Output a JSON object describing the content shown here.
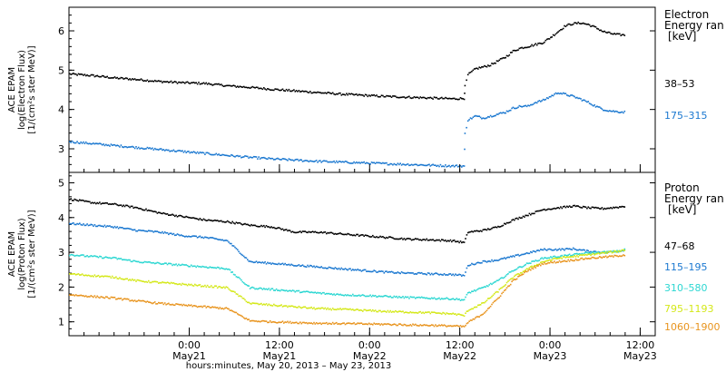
{
  "chart_data": [
    {
      "type": "scatter",
      "panel": "electron",
      "ylabel": [
        "ACE EPAM",
        "log(Electron Flux)",
        "[1/(cm²s ster MeV)]"
      ],
      "ylim": [
        2.4,
        6.6
      ],
      "yticks": [
        3,
        4,
        5,
        6
      ],
      "xlim_hours": [
        0,
        78
      ],
      "legend_title": [
        "Electron",
        "Energy ran",
        "[keV]"
      ],
      "series": [
        {
          "name": "38–53",
          "color": "#000000",
          "points": [
            [
              0,
              4.92
            ],
            [
              3,
              4.88
            ],
            [
              6,
              4.82
            ],
            [
              9,
              4.78
            ],
            [
              12,
              4.73
            ],
            [
              15,
              4.7
            ],
            [
              18,
              4.68
            ],
            [
              21,
              4.62
            ],
            [
              24,
              4.58
            ],
            [
              27,
              4.53
            ],
            [
              30,
              4.49
            ],
            [
              33,
              4.45
            ],
            [
              36,
              4.41
            ],
            [
              39,
              4.38
            ],
            [
              42,
              4.35
            ],
            [
              45,
              4.33
            ],
            [
              48,
              4.31
            ],
            [
              51,
              4.29
            ],
            [
              52.5,
              4.3
            ],
            [
              52.6,
              4.6
            ],
            [
              53,
              4.9
            ],
            [
              54,
              5.05
            ],
            [
              55,
              5.1
            ],
            [
              56,
              5.15
            ],
            [
              57,
              5.25
            ],
            [
              58,
              5.35
            ],
            [
              59,
              5.5
            ],
            [
              60,
              5.58
            ],
            [
              61,
              5.62
            ],
            [
              63,
              5.72
            ],
            [
              64,
              5.85
            ],
            [
              65,
              6.0
            ],
            [
              66,
              6.15
            ],
            [
              67,
              6.2
            ],
            [
              68,
              6.22
            ],
            [
              69,
              6.18
            ],
            [
              70,
              6.1
            ],
            [
              71,
              6.0
            ],
            [
              72,
              5.95
            ],
            [
              73,
              5.92
            ],
            [
              74,
              5.91
            ]
          ]
        },
        {
          "name": "175–315",
          "color": "#1b78d0",
          "points": [
            [
              0,
              3.2
            ],
            [
              3,
              3.15
            ],
            [
              6,
              3.1
            ],
            [
              9,
              3.05
            ],
            [
              12,
              3.0
            ],
            [
              15,
              2.95
            ],
            [
              18,
              2.9
            ],
            [
              21,
              2.85
            ],
            [
              24,
              2.8
            ],
            [
              27,
              2.76
            ],
            [
              30,
              2.73
            ],
            [
              33,
              2.7
            ],
            [
              36,
              2.68
            ],
            [
              39,
              2.66
            ],
            [
              42,
              2.64
            ],
            [
              45,
              2.62
            ],
            [
              48,
              2.6
            ],
            [
              51,
              2.58
            ],
            [
              52.5,
              2.58
            ],
            [
              52.6,
              3.4
            ],
            [
              53,
              3.75
            ],
            [
              54,
              3.85
            ],
            [
              55,
              3.8
            ],
            [
              56,
              3.85
            ],
            [
              57,
              3.9
            ],
            [
              58,
              3.95
            ],
            [
              59,
              4.05
            ],
            [
              60,
              4.1
            ],
            [
              61,
              4.1
            ],
            [
              62,
              4.2
            ],
            [
              63,
              4.25
            ],
            [
              64,
              4.35
            ],
            [
              65,
              4.45
            ],
            [
              66,
              4.4
            ],
            [
              67,
              4.35
            ],
            [
              68,
              4.28
            ],
            [
              69,
              4.2
            ],
            [
              70,
              4.1
            ],
            [
              71,
              4.02
            ],
            [
              72,
              3.98
            ],
            [
              73,
              3.96
            ],
            [
              74,
              3.95
            ]
          ]
        }
      ]
    },
    {
      "type": "scatter",
      "panel": "proton",
      "ylabel": [
        "ACE EPAM",
        "log(Proton Flux)",
        "[1/(cm²s ster MeV)]"
      ],
      "ylim": [
        0.6,
        5.3
      ],
      "yticks": [
        1,
        2,
        3,
        4,
        5
      ],
      "xlim_hours": [
        0,
        78
      ],
      "legend_title": [
        "Proton",
        "Energy ran",
        "[keV]"
      ],
      "series": [
        {
          "name": "47–68",
          "color": "#000000",
          "points": [
            [
              0,
              4.55
            ],
            [
              3,
              4.45
            ],
            [
              6,
              4.4
            ],
            [
              9,
              4.3
            ],
            [
              12,
              4.15
            ],
            [
              15,
              4.05
            ],
            [
              18,
              3.95
            ],
            [
              21,
              3.9
            ],
            [
              24,
              3.8
            ],
            [
              27,
              3.75
            ],
            [
              30,
              3.6
            ],
            [
              33,
              3.6
            ],
            [
              36,
              3.55
            ],
            [
              39,
              3.5
            ],
            [
              42,
              3.45
            ],
            [
              45,
              3.4
            ],
            [
              48,
              3.38
            ],
            [
              51,
              3.35
            ],
            [
              52.5,
              3.3
            ],
            [
              53,
              3.6
            ],
            [
              55,
              3.65
            ],
            [
              57,
              3.75
            ],
            [
              59,
              3.95
            ],
            [
              61,
              4.1
            ],
            [
              63,
              4.25
            ],
            [
              65,
              4.3
            ],
            [
              67,
              4.35
            ],
            [
              69,
              4.3
            ],
            [
              71,
              4.28
            ],
            [
              73,
              4.32
            ],
            [
              74,
              4.35
            ]
          ]
        },
        {
          "name": "115–195",
          "color": "#1b78d0",
          "points": [
            [
              0,
              3.85
            ],
            [
              3,
              3.8
            ],
            [
              6,
              3.75
            ],
            [
              9,
              3.65
            ],
            [
              12,
              3.6
            ],
            [
              15,
              3.5
            ],
            [
              18,
              3.45
            ],
            [
              21,
              3.35
            ],
            [
              24,
              2.75
            ],
            [
              27,
              2.7
            ],
            [
              30,
              2.65
            ],
            [
              33,
              2.6
            ],
            [
              36,
              2.55
            ],
            [
              39,
              2.5
            ],
            [
              42,
              2.45
            ],
            [
              45,
              2.42
            ],
            [
              48,
              2.4
            ],
            [
              51,
              2.38
            ],
            [
              52.5,
              2.35
            ],
            [
              53,
              2.65
            ],
            [
              55,
              2.75
            ],
            [
              57,
              2.8
            ],
            [
              59,
              2.9
            ],
            [
              61,
              3.0
            ],
            [
              63,
              3.1
            ],
            [
              65,
              3.1
            ],
            [
              67,
              3.12
            ],
            [
              69,
              3.05
            ],
            [
              71,
              3.02
            ],
            [
              73,
              3.05
            ],
            [
              74,
              3.1
            ]
          ]
        },
        {
          "name": "310–580",
          "color": "#2dd7d2",
          "points": [
            [
              0,
              2.95
            ],
            [
              3,
              2.9
            ],
            [
              6,
              2.85
            ],
            [
              9,
              2.75
            ],
            [
              12,
              2.7
            ],
            [
              15,
              2.65
            ],
            [
              18,
              2.6
            ],
            [
              21,
              2.55
            ],
            [
              24,
              2.0
            ],
            [
              27,
              1.95
            ],
            [
              30,
              1.9
            ],
            [
              33,
              1.85
            ],
            [
              36,
              1.8
            ],
            [
              39,
              1.78
            ],
            [
              42,
              1.75
            ],
            [
              45,
              1.72
            ],
            [
              48,
              1.7
            ],
            [
              51,
              1.68
            ],
            [
              52.5,
              1.65
            ],
            [
              53,
              1.85
            ],
            [
              55,
              2.0
            ],
            [
              57,
              2.2
            ],
            [
              59,
              2.5
            ],
            [
              61,
              2.7
            ],
            [
              63,
              2.85
            ],
            [
              65,
              2.9
            ],
            [
              67,
              2.95
            ],
            [
              69,
              3.0
            ],
            [
              71,
              3.02
            ],
            [
              73,
              3.05
            ],
            [
              74,
              3.1
            ]
          ]
        },
        {
          "name": "795–1193",
          "color": "#d4e81a",
          "points": [
            [
              0,
              2.4
            ],
            [
              3,
              2.35
            ],
            [
              6,
              2.3
            ],
            [
              9,
              2.2
            ],
            [
              12,
              2.15
            ],
            [
              15,
              2.1
            ],
            [
              18,
              2.05
            ],
            [
              21,
              2.0
            ],
            [
              24,
              1.55
            ],
            [
              27,
              1.5
            ],
            [
              30,
              1.45
            ],
            [
              33,
              1.4
            ],
            [
              36,
              1.38
            ],
            [
              39,
              1.35
            ],
            [
              42,
              1.32
            ],
            [
              45,
              1.3
            ],
            [
              48,
              1.28
            ],
            [
              51,
              1.25
            ],
            [
              52.5,
              1.2
            ],
            [
              53,
              1.35
            ],
            [
              55,
              1.55
            ],
            [
              57,
              1.9
            ],
            [
              59,
              2.3
            ],
            [
              61,
              2.55
            ],
            [
              63,
              2.75
            ],
            [
              65,
              2.85
            ],
            [
              67,
              2.9
            ],
            [
              69,
              2.95
            ],
            [
              71,
              3.0
            ],
            [
              73,
              3.05
            ],
            [
              74,
              3.1
            ]
          ]
        },
        {
          "name": "1060–1900",
          "color": "#e8941e",
          "points": [
            [
              0,
              1.8
            ],
            [
              3,
              1.75
            ],
            [
              6,
              1.7
            ],
            [
              9,
              1.62
            ],
            [
              12,
              1.55
            ],
            [
              15,
              1.5
            ],
            [
              18,
              1.45
            ],
            [
              21,
              1.4
            ],
            [
              24,
              1.05
            ],
            [
              27,
              1.02
            ],
            [
              30,
              1.0
            ],
            [
              33,
              0.98
            ],
            [
              36,
              0.97
            ],
            [
              39,
              0.96
            ],
            [
              42,
              0.95
            ],
            [
              45,
              0.93
            ],
            [
              48,
              0.92
            ],
            [
              51,
              0.9
            ],
            [
              52.5,
              0.88
            ],
            [
              53,
              1.0
            ],
            [
              55,
              1.25
            ],
            [
              57,
              1.7
            ],
            [
              59,
              2.2
            ],
            [
              61,
              2.5
            ],
            [
              63,
              2.7
            ],
            [
              65,
              2.75
            ],
            [
              67,
              2.8
            ],
            [
              69,
              2.85
            ],
            [
              71,
              2.88
            ],
            [
              73,
              2.92
            ],
            [
              74,
              2.95
            ]
          ]
        }
      ]
    }
  ],
  "x_axis": {
    "ticks": [
      {
        "hour": 16,
        "time": "0:00",
        "date": "May21"
      },
      {
        "hour": 28,
        "time": "12:00",
        "date": "May21"
      },
      {
        "hour": 40,
        "time": "0:00",
        "date": "May22"
      },
      {
        "hour": 52,
        "time": "12:00",
        "date": "May22"
      },
      {
        "hour": 64,
        "time": "0:00",
        "date": "May23"
      },
      {
        "hour": 76,
        "time": "12:00",
        "date": "May23"
      }
    ],
    "minor_tick_every_hours": 2,
    "xlabel": "hours:minutes, May 20, 2013 – May 23, 2013"
  }
}
